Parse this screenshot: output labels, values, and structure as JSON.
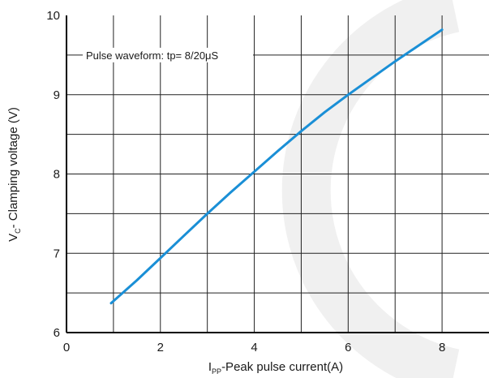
{
  "chart_data": {
    "type": "line",
    "xlabel": {
      "main": "I",
      "sub": "PP",
      "rest": "-Peak pulse current(A)"
    },
    "ylabel": {
      "main": "V",
      "sub": "C",
      "rest": "- Clamping voltage (V)"
    },
    "xlim": [
      0,
      9
    ],
    "ylim": [
      6,
      10
    ],
    "x_ticks": [
      "0",
      "2",
      "4",
      "6",
      "8"
    ],
    "y_ticks": [
      "6",
      "7",
      "8",
      "9",
      "10"
    ],
    "grid": true,
    "annotation": "Pulse waveform: tp= 8/20μS",
    "line_color": "#1a8fd6",
    "series": [
      {
        "x": [
          0.95,
          1.5,
          2.0,
          2.5,
          3.0,
          3.5,
          4.0,
          4.5,
          5.0,
          5.5,
          6.0,
          6.5,
          7.0,
          7.5,
          8.0
        ],
        "y": [
          6.37,
          6.66,
          6.94,
          7.22,
          7.5,
          7.77,
          8.03,
          8.29,
          8.54,
          8.78,
          9.0,
          9.21,
          9.42,
          9.62,
          9.82
        ]
      }
    ]
  }
}
